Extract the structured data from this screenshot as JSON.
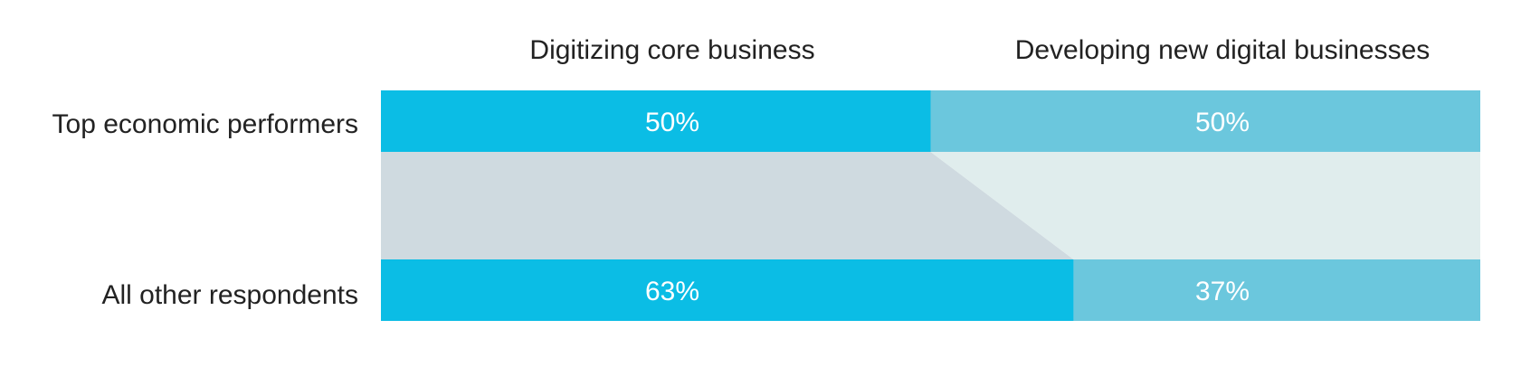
{
  "chart_data": {
    "type": "bar",
    "stacked": true,
    "normalized": true,
    "categories": [
      "Top economic performers",
      "All other respondents"
    ],
    "series": [
      {
        "name": "Digitizing core business",
        "values": [
          50,
          63
        ],
        "labels": [
          "50%",
          "63%"
        ],
        "color": "#0bbde5"
      },
      {
        "name": "Developing new digital businesses",
        "values": [
          50,
          37
        ],
        "labels": [
          "50%",
          "37%"
        ],
        "color": "#6bc7dd"
      }
    ],
    "connector_colors": [
      "#cfdae0",
      "#e0eded"
    ],
    "xlim": [
      0,
      100
    ],
    "legend": "top"
  }
}
